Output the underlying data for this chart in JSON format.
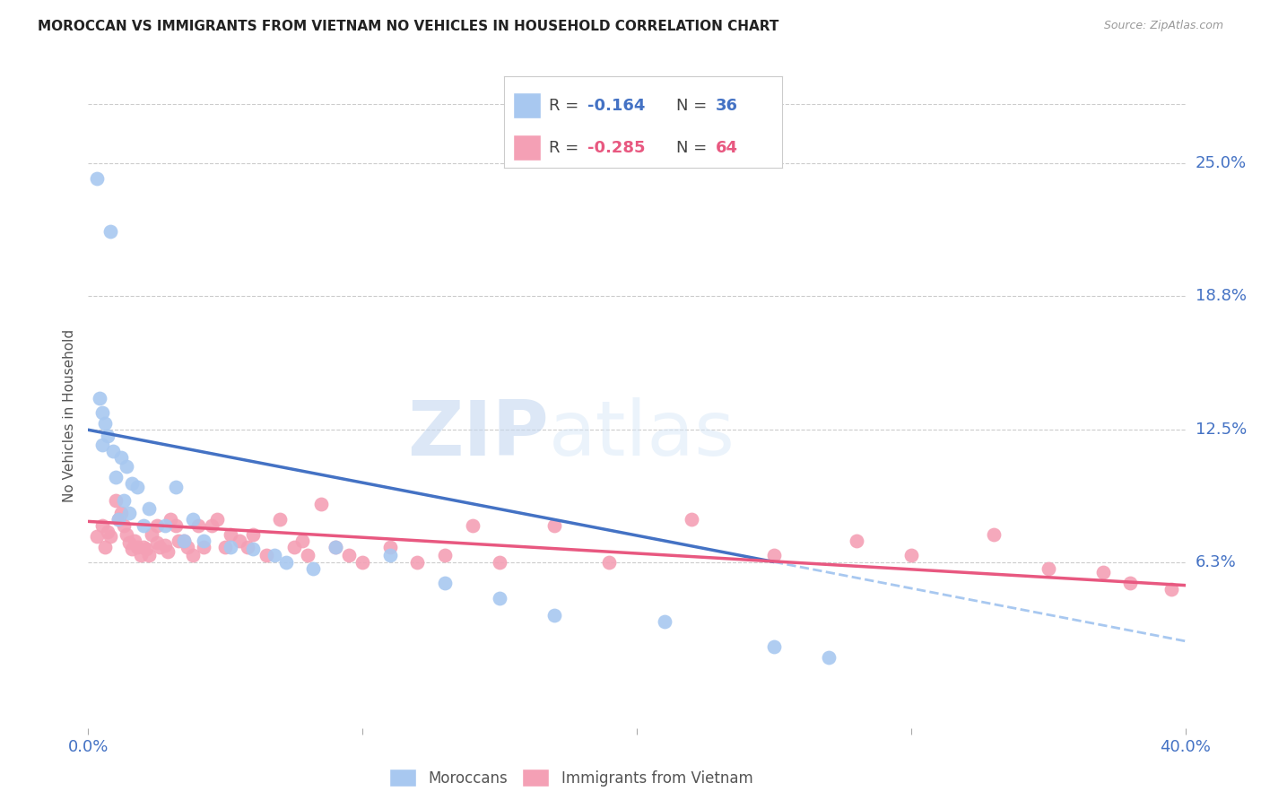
{
  "title": "MOROCCAN VS IMMIGRANTS FROM VIETNAM NO VEHICLES IN HOUSEHOLD CORRELATION CHART",
  "source": "Source: ZipAtlas.com",
  "ylabel": "No Vehicles in Household",
  "ytick_labels": [
    "6.3%",
    "12.5%",
    "18.8%",
    "25.0%"
  ],
  "ytick_values": [
    0.063,
    0.125,
    0.188,
    0.25
  ],
  "xlim": [
    0.0,
    0.4
  ],
  "ylim": [
    -0.015,
    0.278
  ],
  "color_moroccan": "#A8C8F0",
  "color_vietnam": "#F4A0B5",
  "color_line_moroccan": "#4472C4",
  "color_line_vietnam": "#E85880",
  "color_line_moroccan_ext": "#A8C8F0",
  "watermark_zip": "ZIP",
  "watermark_atlas": "atlas",
  "moroccan_x": [
    0.003,
    0.008,
    0.004,
    0.005,
    0.006,
    0.007,
    0.005,
    0.009,
    0.012,
    0.014,
    0.01,
    0.016,
    0.018,
    0.013,
    0.015,
    0.011,
    0.022,
    0.02,
    0.032,
    0.028,
    0.038,
    0.042,
    0.035,
    0.052,
    0.06,
    0.068,
    0.072,
    0.082,
    0.09,
    0.11,
    0.13,
    0.15,
    0.17,
    0.21,
    0.25,
    0.27
  ],
  "moroccan_y": [
    0.243,
    0.218,
    0.14,
    0.133,
    0.128,
    0.122,
    0.118,
    0.115,
    0.112,
    0.108,
    0.103,
    0.1,
    0.098,
    0.092,
    0.086,
    0.083,
    0.088,
    0.08,
    0.098,
    0.08,
    0.083,
    0.073,
    0.073,
    0.07,
    0.069,
    0.066,
    0.063,
    0.06,
    0.07,
    0.066,
    0.053,
    0.046,
    0.038,
    0.035,
    0.023,
    0.018
  ],
  "vietnam_x": [
    0.003,
    0.005,
    0.006,
    0.007,
    0.008,
    0.01,
    0.011,
    0.012,
    0.013,
    0.014,
    0.015,
    0.016,
    0.017,
    0.018,
    0.019,
    0.02,
    0.021,
    0.022,
    0.023,
    0.025,
    0.025,
    0.026,
    0.028,
    0.029,
    0.03,
    0.032,
    0.033,
    0.035,
    0.036,
    0.038,
    0.04,
    0.042,
    0.045,
    0.047,
    0.05,
    0.052,
    0.055,
    0.058,
    0.06,
    0.065,
    0.07,
    0.075,
    0.078,
    0.08,
    0.085,
    0.09,
    0.095,
    0.1,
    0.11,
    0.12,
    0.13,
    0.14,
    0.15,
    0.17,
    0.19,
    0.22,
    0.25,
    0.28,
    0.3,
    0.33,
    0.35,
    0.37,
    0.38,
    0.395
  ],
  "vietnam_y": [
    0.075,
    0.08,
    0.07,
    0.077,
    0.075,
    0.092,
    0.083,
    0.086,
    0.08,
    0.076,
    0.072,
    0.069,
    0.073,
    0.07,
    0.066,
    0.07,
    0.069,
    0.066,
    0.076,
    0.08,
    0.072,
    0.07,
    0.071,
    0.068,
    0.083,
    0.08,
    0.073,
    0.073,
    0.07,
    0.066,
    0.08,
    0.07,
    0.08,
    0.083,
    0.07,
    0.076,
    0.073,
    0.07,
    0.076,
    0.066,
    0.083,
    0.07,
    0.073,
    0.066,
    0.09,
    0.07,
    0.066,
    0.063,
    0.07,
    0.063,
    0.066,
    0.08,
    0.063,
    0.08,
    0.063,
    0.083,
    0.066,
    0.073,
    0.066,
    0.076,
    0.06,
    0.058,
    0.053,
    0.05
  ],
  "line_moroccan_x0": 0.0,
  "line_moroccan_y0": 0.125,
  "line_moroccan_x1": 0.25,
  "line_moroccan_y1": 0.063,
  "line_morocco_ext_x0": 0.25,
  "line_morocco_ext_x1": 0.4,
  "line_vietnam_x0": 0.0,
  "line_vietnam_y0": 0.082,
  "line_vietnam_x1": 0.4,
  "line_vietnam_y1": 0.052,
  "background_color": "#FFFFFF",
  "grid_color": "#CCCCCC",
  "grid_linestyle": "--"
}
